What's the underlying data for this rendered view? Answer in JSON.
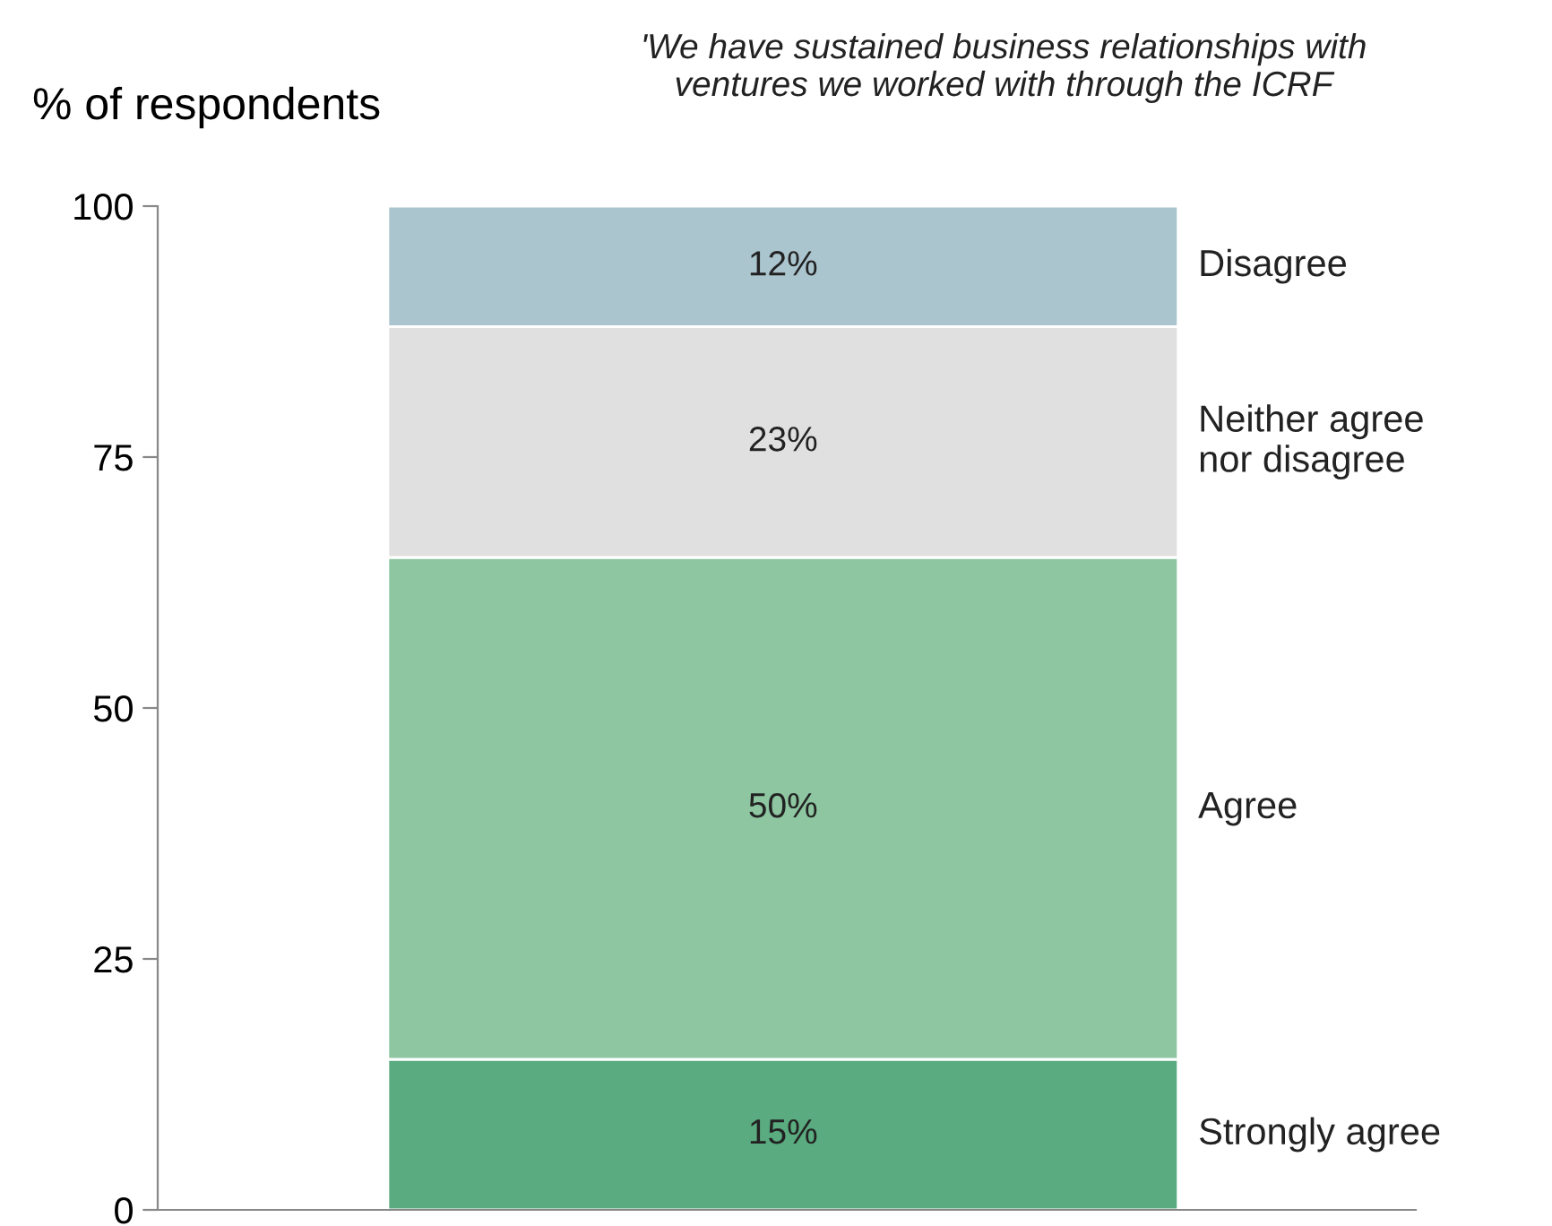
{
  "chart_data": {
    "type": "bar",
    "stacked": true,
    "title": "'We have sustained business relationships with ventures we worked with through the ICRF",
    "ylabel": "% of respondents",
    "categories": [
      null
    ],
    "series": [
      {
        "name": "Strongly agree",
        "color": "#5aab7f",
        "values": [
          15
        ],
        "value_labels": [
          "15%"
        ]
      },
      {
        "name": "Agree",
        "color": "#8dc6a0",
        "values": [
          50
        ],
        "value_labels": [
          "50%"
        ]
      },
      {
        "name": "Neither agree nor disagree",
        "color": "#e0e0e0",
        "values": [
          23
        ],
        "value_labels": [
          "23%"
        ]
      },
      {
        "name": "Disagree",
        "color": "#abc5cf",
        "values": [
          12
        ],
        "value_labels": [
          "12%"
        ]
      }
    ],
    "ylim": [
      0,
      100
    ],
    "yticks": [
      0,
      25,
      50,
      75,
      100
    ],
    "grid": false,
    "legend": false
  }
}
